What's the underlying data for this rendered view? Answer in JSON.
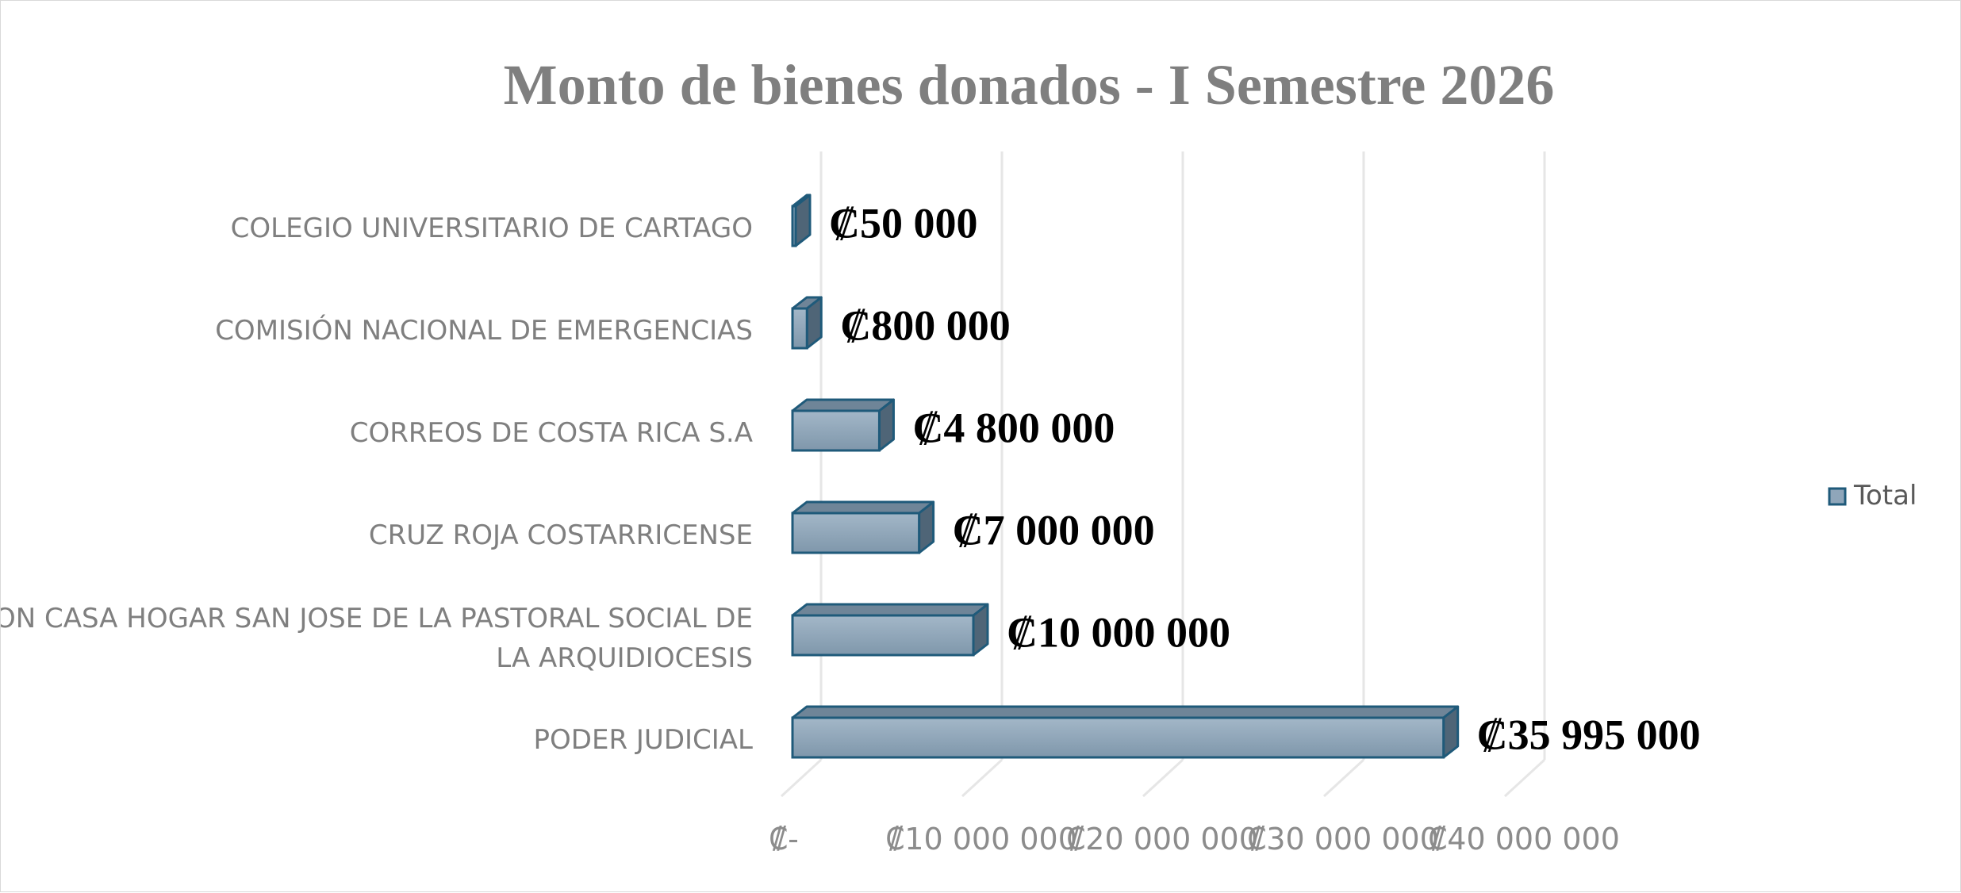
{
  "chart_data": {
    "type": "bar",
    "orientation": "horizontal",
    "style": "3d",
    "title": "Monto de bienes donados - I Semestre 2026",
    "categories": [
      "COLEGIO UNIVERSITARIO DE CARTAGO",
      "COMISIÓN NACIONAL DE EMERGENCIAS",
      "CORREOS DE COSTA RICA S.A",
      "CRUZ ROJA COSTARRICENSE",
      "ASOCIACION CASA HOGAR SAN JOSE DE LA PASTORAL SOCIAL DE LA ARQUIDIOCESIS",
      "PODER JUDICIAL"
    ],
    "series": [
      {
        "name": "Total",
        "values": [
          50000,
          800000,
          4800000,
          7000000,
          10000000,
          35995000
        ],
        "labels": [
          "₡50 000",
          "₡800 000",
          "₡4 800 000",
          "₡7 000 000",
          "₡10 000 000",
          "₡35 995 000"
        ]
      }
    ],
    "xticks": [
      0,
      10000000,
      20000000,
      30000000,
      40000000
    ],
    "xtick_labels": [
      "₡-",
      "₡10 000 000",
      "₡20 000 000",
      "₡30 000 000",
      "₡40 000 000"
    ],
    "xlim": [
      0,
      40000000
    ],
    "grid": true,
    "legend": "right",
    "colors": {
      "bar_front": "#8fa6ba",
      "bar_top": "#6f8598",
      "bar_side": "#4f6577",
      "bar_edge": "#1f5a7a",
      "grid": "#e6e6e6"
    }
  }
}
